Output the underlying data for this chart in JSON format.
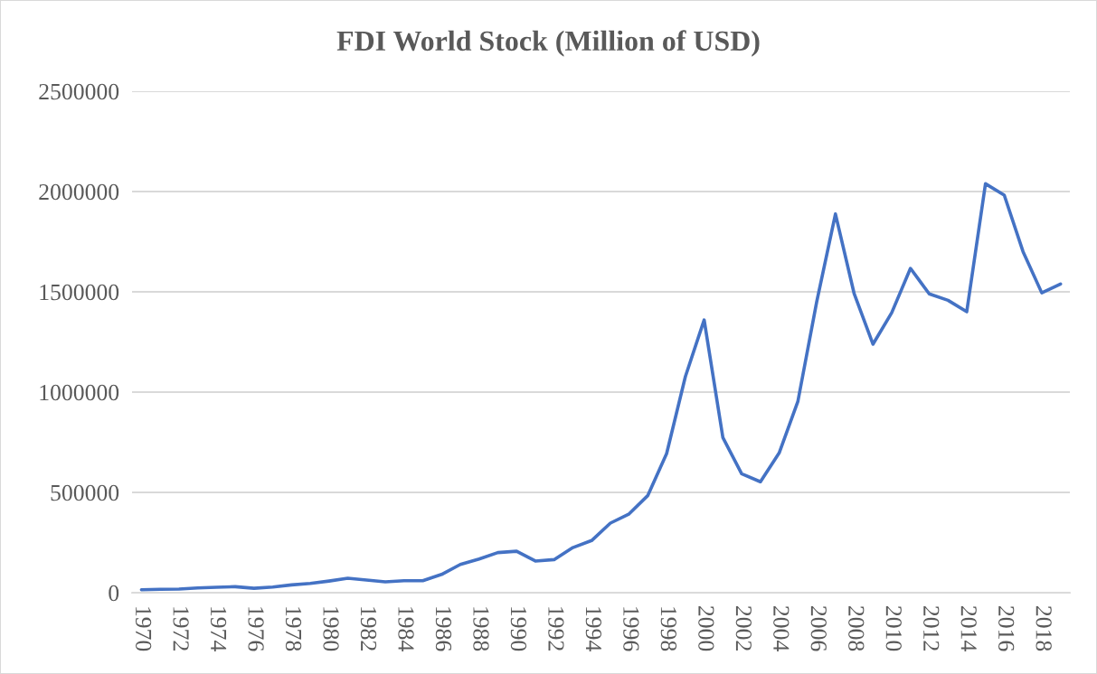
{
  "chart_data": {
    "type": "line",
    "title": "FDI World Stock (Million of USD)",
    "categories": [
      "1970",
      null,
      "1972",
      null,
      "1974",
      null,
      "1976",
      null,
      "1978",
      null,
      "1980",
      null,
      "1982",
      null,
      "1984",
      null,
      "1986",
      null,
      "1988",
      null,
      "1990",
      null,
      "1992",
      null,
      "1994",
      null,
      "1996",
      null,
      "1998",
      null,
      "2000",
      null,
      "2002",
      null,
      "2004",
      null,
      "2006",
      null,
      "2008",
      null,
      "2010",
      null,
      "2012",
      null,
      "2014",
      null,
      "2016",
      null,
      "2018",
      null
    ],
    "series": [
      {
        "color": "#4472c4",
        "values": [
          15000,
          17000,
          18000,
          24000,
          27000,
          30000,
          22000,
          28000,
          39000,
          46000,
          58000,
          72000,
          63000,
          54000,
          60000,
          60000,
          91000,
          141000,
          168000,
          200000,
          207000,
          158000,
          165000,
          225000,
          260000,
          347000,
          393000,
          485000,
          694000,
          1078000,
          1360000,
          773000,
          593000,
          553000,
          697000,
          955000,
          1450000,
          1888000,
          1490000,
          1239000,
          1396000,
          1617000,
          1490000,
          1458000,
          1401000,
          2039000,
          1982000,
          1701000,
          1495000,
          1539000
        ]
      }
    ],
    "ylim": [
      0,
      2500000
    ],
    "yticks": [
      0,
      500000,
      1000000,
      1500000,
      2000000,
      2500000
    ],
    "grid": "y"
  }
}
